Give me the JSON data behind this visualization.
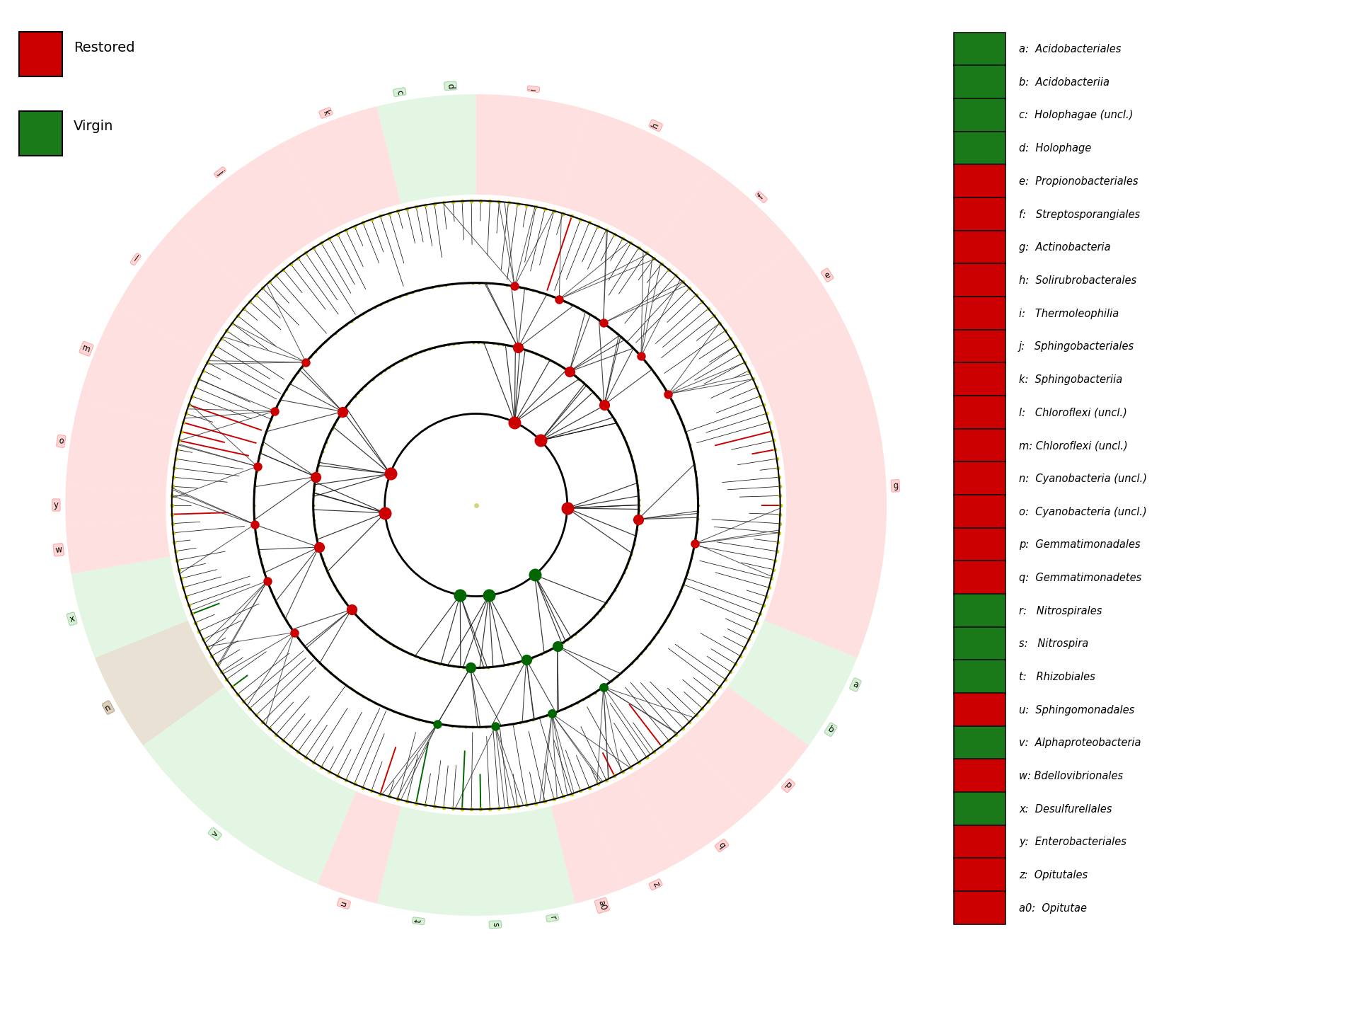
{
  "legend_entries": [
    {
      "label": "a:  Acidobacteriales",
      "color": "#1a7a1a"
    },
    {
      "label": "b:  Acidobacteriia",
      "color": "#1a7a1a"
    },
    {
      "label": "c:  Holophagae (uncl.)",
      "color": "#1a7a1a"
    },
    {
      "label": "d:  Holophage",
      "color": "#1a7a1a"
    },
    {
      "label": "e:  Propionobacteriales",
      "color": "#cc0000"
    },
    {
      "label": "f:   Streptosporangiales",
      "color": "#cc0000"
    },
    {
      "label": "g:  Actinobacteria",
      "color": "#cc0000"
    },
    {
      "label": "h:  Solirubrobacterales",
      "color": "#cc0000"
    },
    {
      "label": "i:   Thermoleophilia",
      "color": "#cc0000"
    },
    {
      "label": "j:   Sphingobacteriales",
      "color": "#cc0000"
    },
    {
      "label": "k:  Sphingobacteriia",
      "color": "#cc0000"
    },
    {
      "label": "l:   Chloroflexi (uncl.)",
      "color": "#cc0000"
    },
    {
      "label": "m: Chloroflexi (uncl.)",
      "color": "#cc0000"
    },
    {
      "label": "n:  Cyanobacteria (uncl.)",
      "color": "#cc0000"
    },
    {
      "label": "o:  Cyanobacteria (uncl.)",
      "color": "#cc0000"
    },
    {
      "label": "p:  Gemmatimonadales",
      "color": "#cc0000"
    },
    {
      "label": "q:  Gemmatimonadetes",
      "color": "#cc0000"
    },
    {
      "label": "r:   Nitrospirales",
      "color": "#1a7a1a"
    },
    {
      "label": "s:   Nitrospira",
      "color": "#1a7a1a"
    },
    {
      "label": "t:   Rhizobiales",
      "color": "#1a7a1a"
    },
    {
      "label": "u:  Sphingomonadales",
      "color": "#cc0000"
    },
    {
      "label": "v:  Alphaproteobacteria",
      "color": "#1a7a1a"
    },
    {
      "label": "w: Bdellovibrionales",
      "color": "#cc0000"
    },
    {
      "label": "x:  Desulfurellales",
      "color": "#1a7a1a"
    },
    {
      "label": "y:  Enterobacteriales",
      "color": "#cc0000"
    },
    {
      "label": "z:  Opitutales",
      "color": "#cc0000"
    },
    {
      "label": "a0:  Opitutae",
      "color": "#cc0000"
    }
  ],
  "legend_topleft": [
    {
      "label": "Restored",
      "color": "#cc0000"
    },
    {
      "label": "Virgin",
      "color": "#1a7a1a"
    }
  ],
  "groups": [
    {
      "name": "i",
      "nticks": 9,
      "type": "R"
    },
    {
      "name": "h",
      "nticks": 11,
      "type": "R"
    },
    {
      "name": "f",
      "nticks": 9,
      "type": "R"
    },
    {
      "name": "e",
      "nticks": 7,
      "type": "R"
    },
    {
      "name": "g",
      "nticks": 28,
      "type": "R"
    },
    {
      "name": "a",
      "nticks": 4,
      "type": "V"
    },
    {
      "name": "b",
      "nticks": 4,
      "type": "V"
    },
    {
      "name": "p",
      "nticks": 7,
      "type": "R"
    },
    {
      "name": "q",
      "nticks": 7,
      "type": "R"
    },
    {
      "name": "z",
      "nticks": 5,
      "type": "R"
    },
    {
      "name": "a0",
      "nticks": 4,
      "type": "R"
    },
    {
      "name": "r",
      "nticks": 4,
      "type": "V"
    },
    {
      "name": "s",
      "nticks": 5,
      "type": "V"
    },
    {
      "name": "t",
      "nticks": 7,
      "type": "V"
    },
    {
      "name": "u",
      "nticks": 5,
      "type": "R"
    },
    {
      "name": "v",
      "nticks": 18,
      "type": "V"
    },
    {
      "name": "n",
      "nticks": 8,
      "type": "N"
    },
    {
      "name": "x",
      "nticks": 7,
      "type": "V"
    },
    {
      "name": "w",
      "nticks": 4,
      "type": "R"
    },
    {
      "name": "y",
      "nticks": 3,
      "type": "R"
    },
    {
      "name": "o",
      "nticks": 7,
      "type": "R"
    },
    {
      "name": "m",
      "nticks": 8,
      "type": "R"
    },
    {
      "name": "l",
      "nticks": 8,
      "type": "R"
    },
    {
      "name": "j",
      "nticks": 11,
      "type": "R"
    },
    {
      "name": "k",
      "nticks": 8,
      "type": "R"
    },
    {
      "name": "c",
      "nticks": 4,
      "type": "V"
    },
    {
      "name": "d",
      "nticks": 4,
      "type": "V"
    }
  ],
  "R_outer_dot": 1.0,
  "R_tick_base": 1.0,
  "R_c1": 0.73,
  "R_c2": 0.535,
  "R_c3": 0.3,
  "R_sec_in": 1.02,
  "R_sec_out": 1.35,
  "R_label": 1.38,
  "pink": "#ffcccc",
  "green_s": "#cceecc",
  "tan": "#d4c5a9",
  "background": "#ffffff",
  "dot_yellow": "#cccc00",
  "dot_red": "#cc0000",
  "dot_green": "#006600",
  "dot_ygreen": "#aaaa00"
}
